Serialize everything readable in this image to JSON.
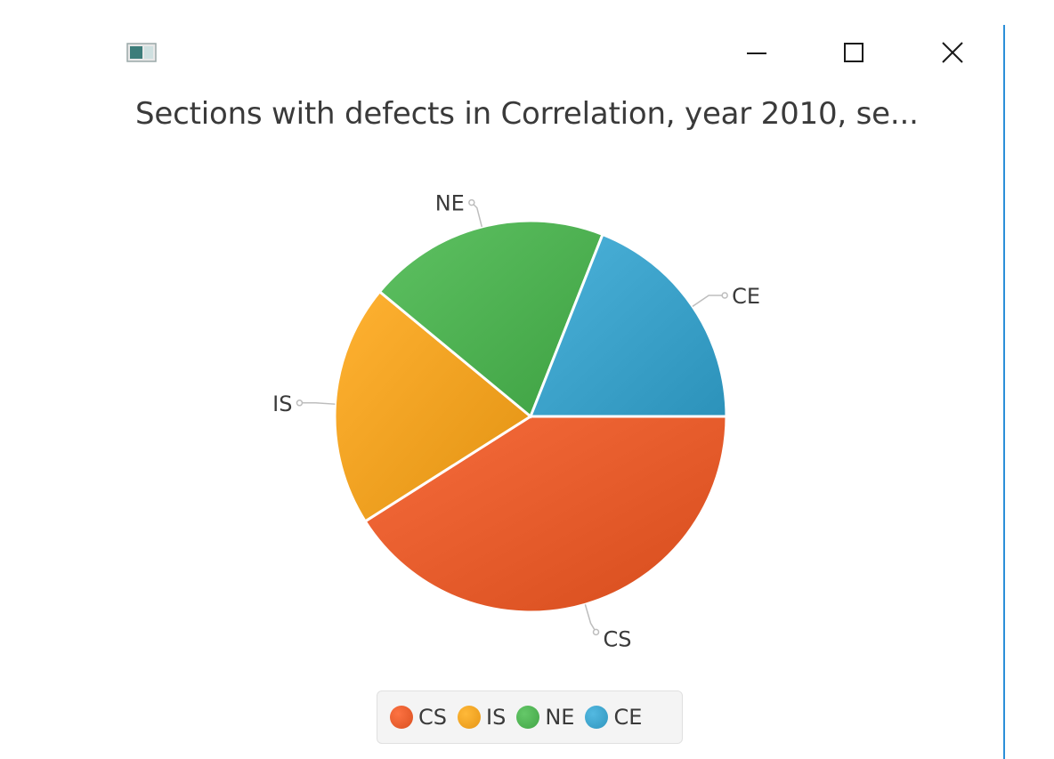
{
  "window": {
    "title": "Sections with defects in Correlation, year 2010, se...",
    "controls": {
      "minimize": "minimize-icon",
      "maximize": "maximize-icon",
      "close": "close-icon"
    },
    "accent_border": "#2b8fd8"
  },
  "chart_data": {
    "type": "pie",
    "title": "Sections with defects in Correlation, year 2010, se...",
    "start_angle_deg": 0,
    "direction": "clockwise",
    "slices": [
      {
        "name": "CS",
        "value": 41,
        "color": "#e45a2a"
      },
      {
        "name": "IS",
        "value": 20,
        "color": "#f0a020"
      },
      {
        "name": "NE",
        "value": 20,
        "color": "#4caf50"
      },
      {
        "name": "CE",
        "value": 19,
        "color": "#3aa0c8"
      }
    ],
    "legend": [
      "CS",
      "IS",
      "NE",
      "CE"
    ],
    "legend_position": "bottom"
  }
}
